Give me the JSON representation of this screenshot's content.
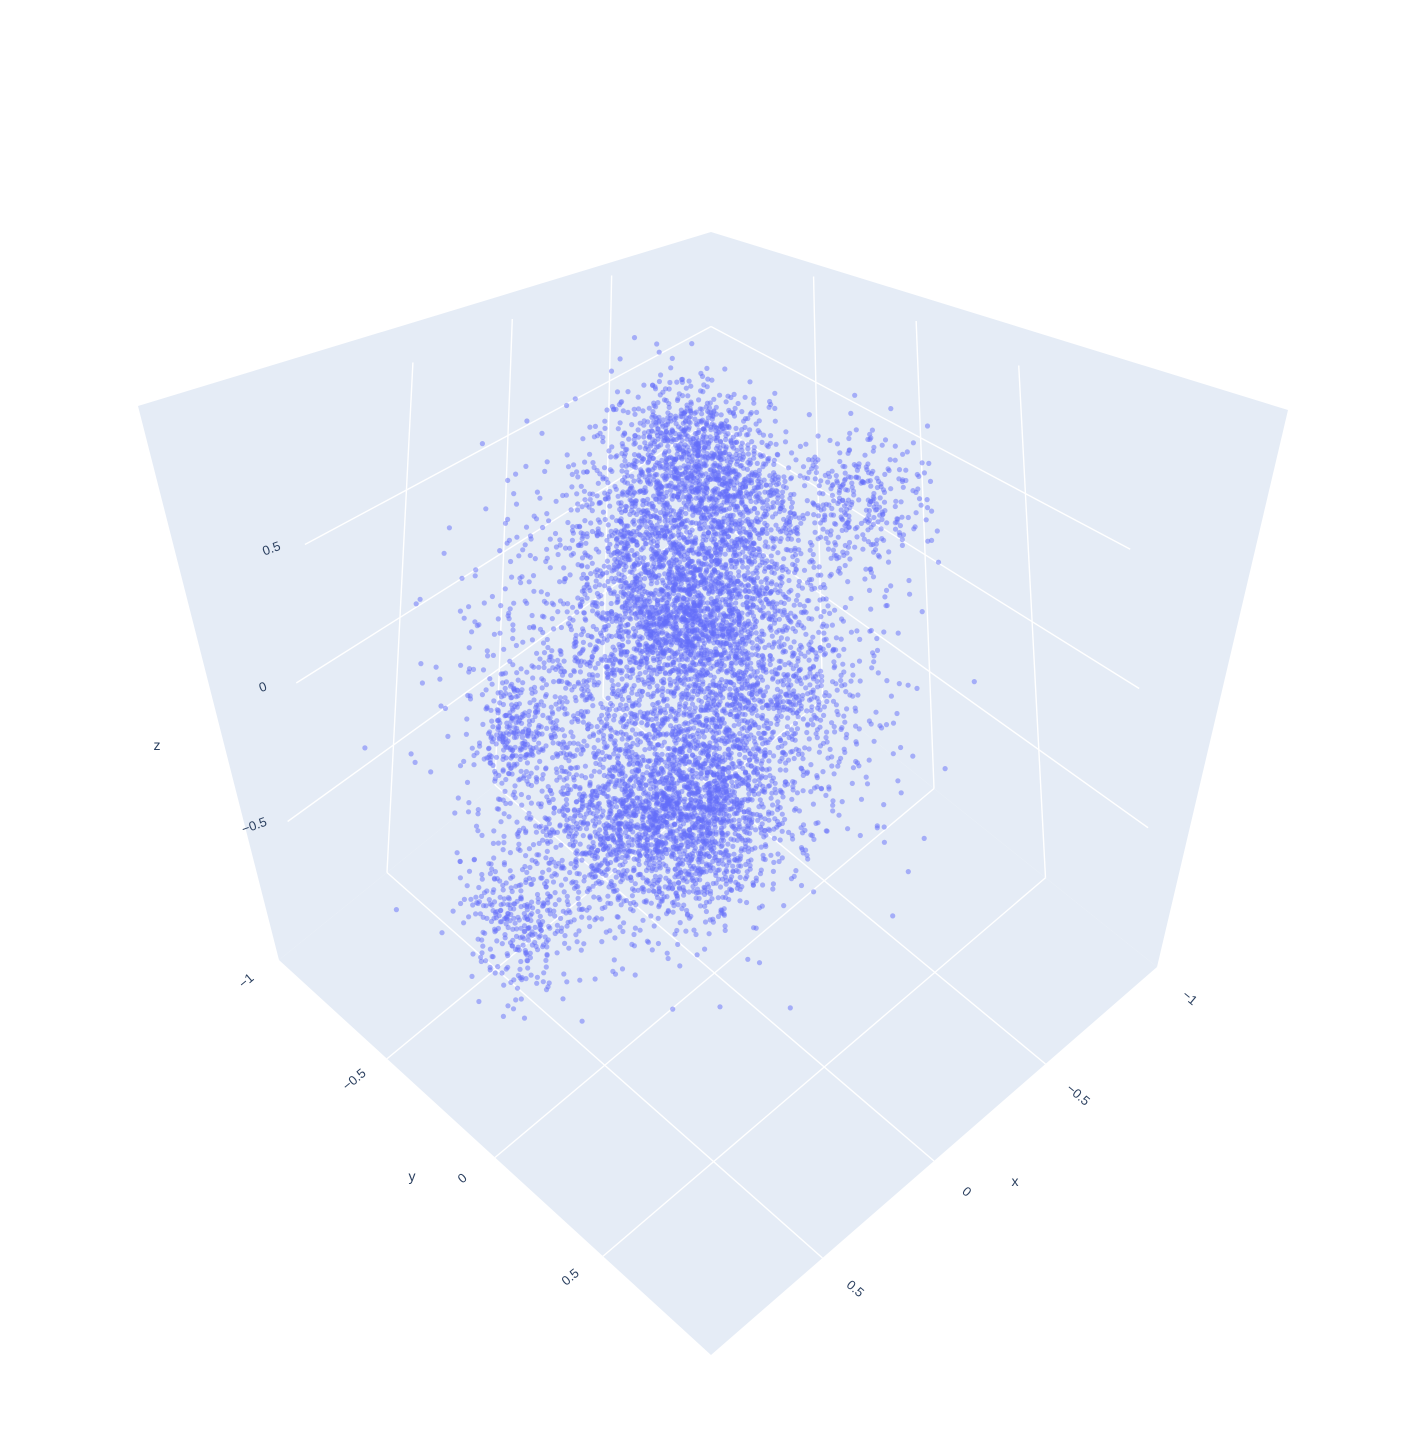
{
  "chart_data": {
    "type": "scatter",
    "dimensions": 3,
    "marker_color": "#636efa",
    "marker_opacity": 0.5,
    "background_color": "#ffffff",
    "pane_color": "#e5ecf6",
    "grid_color": "#ffffff",
    "tick_color": "#2a3f5f",
    "xlabel": "x",
    "ylabel": "y",
    "zlabel": "z",
    "xlim": [
      -1,
      1
    ],
    "ylim": [
      -1,
      1
    ],
    "zlim": [
      -1,
      1
    ],
    "xticks": [
      "−1",
      "−0.5",
      "0",
      "0.5"
    ],
    "yticks": [
      "−1",
      "−0.5",
      "0",
      "0.5"
    ],
    "zticks": [
      "−0.5",
      "0",
      "0.5"
    ],
    "xtick_values": [
      -1,
      -0.5,
      0,
      0.5
    ],
    "ytick_values": [
      -1,
      -0.5,
      0,
      0.5
    ],
    "ztick_values": [
      -0.5,
      0,
      0.5
    ],
    "point_count_approx": 20000,
    "clusters": [
      {
        "x": -0.55,
        "y": -0.65,
        "z": 0.35,
        "sd": 0.13,
        "n": 1800
      },
      {
        "x": -0.5,
        "y": -0.35,
        "z": 0.25,
        "sd": 0.14,
        "n": 1500
      },
      {
        "x": -0.35,
        "y": -0.55,
        "z": -0.15,
        "sd": 0.12,
        "n": 1600
      },
      {
        "x": -0.05,
        "y": -0.45,
        "z": 0.45,
        "sd": 0.12,
        "n": 900
      },
      {
        "x": -0.1,
        "y": -0.1,
        "z": 0.25,
        "sd": 0.13,
        "n": 1100
      },
      {
        "x": 0.15,
        "y": 0.05,
        "z": -0.25,
        "sd": 0.14,
        "n": 2200
      },
      {
        "x": 0.45,
        "y": -0.05,
        "z": -0.2,
        "sd": 0.13,
        "n": 1300
      },
      {
        "x": 0.35,
        "y": 0.25,
        "z": 0.05,
        "sd": 0.15,
        "n": 1100
      },
      {
        "x": -0.2,
        "y": 0.1,
        "z": 0.0,
        "sd": 0.18,
        "n": 1400
      },
      {
        "x": 0.1,
        "y": -0.2,
        "z": 0.05,
        "sd": 0.3,
        "n": 4200
      },
      {
        "x": 0.6,
        "y": -0.35,
        "z": 0.05,
        "sd": 0.08,
        "n": 500
      },
      {
        "x": 0.75,
        "y": -0.15,
        "z": -0.4,
        "sd": 0.1,
        "n": 700
      },
      {
        "x": -0.8,
        "y": -0.1,
        "z": 0.3,
        "sd": 0.12,
        "n": 600
      }
    ]
  }
}
